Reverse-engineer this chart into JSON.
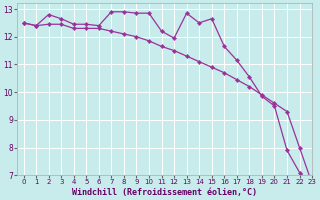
{
  "xlabel": "Windchill (Refroidissement éolien,°C)",
  "background_color": "#c8ecec",
  "line_color": "#993399",
  "grid_color": "#ffffff",
  "x": [
    0,
    1,
    2,
    3,
    4,
    5,
    6,
    7,
    8,
    9,
    10,
    11,
    12,
    13,
    14,
    15,
    16,
    17,
    18,
    19,
    20,
    21,
    22,
    23
  ],
  "y_smooth": [
    12.5,
    12.4,
    12.45,
    12.45,
    12.3,
    12.3,
    12.3,
    12.2,
    12.1,
    12.0,
    11.85,
    11.65,
    11.5,
    11.3,
    11.1,
    10.9,
    10.7,
    10.45,
    10.2,
    9.9,
    9.6,
    9.3,
    8.0,
    6.7
  ],
  "y_jagged": [
    12.5,
    12.4,
    12.8,
    12.65,
    12.45,
    12.45,
    12.4,
    12.9,
    12.9,
    12.85,
    12.85,
    12.2,
    11.95,
    12.85,
    12.5,
    12.65,
    11.65,
    11.15,
    10.55,
    9.85,
    9.5,
    7.9,
    7.1,
    6.7
  ],
  "ylim": [
    7,
    13.2
  ],
  "yticks": [
    7,
    8,
    9,
    10,
    11,
    12,
    13
  ],
  "xlim": [
    -0.5,
    23
  ],
  "xticks": [
    0,
    1,
    2,
    3,
    4,
    5,
    6,
    7,
    8,
    9,
    10,
    11,
    12,
    13,
    14,
    15,
    16,
    17,
    18,
    19,
    20,
    21,
    22,
    23
  ],
  "xlabel_fontsize": 6,
  "tick_fontsize": 5.5,
  "figwidth": 3.2,
  "figheight": 2.0,
  "dpi": 100
}
